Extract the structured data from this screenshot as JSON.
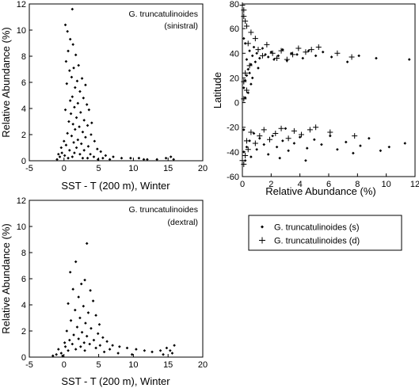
{
  "chart_data": [
    {
      "id": "a",
      "type": "scatter",
      "xlabel": "SST - T (200 m), Winter",
      "ylabel": "Relative Abundance (%)",
      "xlim": [
        -5,
        20
      ],
      "ylim": [
        0,
        12
      ],
      "xticks": [
        "-5",
        "0",
        "5",
        "10",
        "15",
        "20"
      ],
      "yticks": [
        "0",
        "2",
        "4",
        "6",
        "8",
        "10",
        "12"
      ],
      "annotation": [
        "G. truncatulinoides",
        "(sinistral)"
      ],
      "grid": false,
      "series": [
        {
          "marker": "diamond",
          "points": [
            [
              1.2,
              11.6
            ],
            [
              0.2,
              10.4
            ],
            [
              0.5,
              9.9
            ],
            [
              0.9,
              9.3
            ],
            [
              1.3,
              8.9
            ],
            [
              0.6,
              8.4
            ],
            [
              1.7,
              8.1
            ],
            [
              0.3,
              7.6
            ],
            [
              1.4,
              7.1
            ],
            [
              2.1,
              7.3
            ],
            [
              0.8,
              6.9
            ],
            [
              1.1,
              6.4
            ],
            [
              1.9,
              6.1
            ],
            [
              2.6,
              6.3
            ],
            [
              0.4,
              5.9
            ],
            [
              1.6,
              5.6
            ],
            [
              2.3,
              5.3
            ],
            [
              3.1,
              5.8
            ],
            [
              1.2,
              4.9
            ],
            [
              0.9,
              4.6
            ],
            [
              2.0,
              4.4
            ],
            [
              2.8,
              4.8
            ],
            [
              3.3,
              4.3
            ],
            [
              1.5,
              4.1
            ],
            [
              0.2,
              3.9
            ],
            [
              1.0,
              3.6
            ],
            [
              2.4,
              3.7
            ],
            [
              3.6,
              3.9
            ],
            [
              1.8,
              3.3
            ],
            [
              2.9,
              3.1
            ],
            [
              0.7,
              3.0
            ],
            [
              1.3,
              2.8
            ],
            [
              2.2,
              2.6
            ],
            [
              3.4,
              2.7
            ],
            [
              4.0,
              2.9
            ],
            [
              1.6,
              2.4
            ],
            [
              2.7,
              2.2
            ],
            [
              0.5,
              2.1
            ],
            [
              1.1,
              1.9
            ],
            [
              3.1,
              1.8
            ],
            [
              3.9,
              2.0
            ],
            [
              2.0,
              1.6
            ],
            [
              4.4,
              1.5
            ],
            [
              1.4,
              1.4
            ],
            [
              2.5,
              1.3
            ],
            [
              0.3,
              1.2
            ],
            [
              3.5,
              1.1
            ],
            [
              1.8,
              1.0
            ],
            [
              4.8,
              0.9
            ],
            [
              2.9,
              0.8
            ],
            [
              0.8,
              0.8
            ],
            [
              5.3,
              0.7
            ],
            [
              1.5,
              0.6
            ],
            [
              3.8,
              0.5
            ],
            [
              2.3,
              0.5
            ],
            [
              6.0,
              0.4
            ],
            [
              0.1,
              0.4
            ],
            [
              4.3,
              0.3
            ],
            [
              7.1,
              0.3
            ],
            [
              1.2,
              0.3
            ],
            [
              2.7,
              0.2
            ],
            [
              5.6,
              0.2
            ],
            [
              8.3,
              0.2
            ],
            [
              3.4,
              0.2
            ],
            [
              9.6,
              0.2
            ],
            [
              0.6,
              0.2
            ],
            [
              6.6,
              0.1
            ],
            [
              10.8,
              0.2
            ],
            [
              12.0,
              0.1
            ],
            [
              4.9,
              0.1
            ],
            [
              13.4,
              0.1
            ],
            [
              14.7,
              0.2
            ],
            [
              15.4,
              0.3
            ],
            [
              15.8,
              0.1
            ],
            [
              11.5,
              0.1
            ],
            [
              -0.6,
              0.3
            ],
            [
              -1.0,
              0.1
            ],
            [
              -0.3,
              0.6
            ],
            [
              -0.8,
              0.5
            ],
            [
              0.0,
              1.5
            ],
            [
              -0.4,
              1.0
            ]
          ]
        }
      ]
    },
    {
      "id": "b",
      "type": "scatter",
      "xlabel": "Relative Abundance (%)",
      "ylabel": "Latitude",
      "xlim": [
        0,
        12
      ],
      "ylim": [
        -60,
        80
      ],
      "xticks": [
        "0",
        "2",
        "4",
        "6",
        "8",
        "10",
        "12"
      ],
      "yticks": [
        "-60",
        "-40",
        "-20",
        "0",
        "20",
        "40",
        "60",
        "80"
      ],
      "grid": false,
      "series": [
        {
          "name": "G. truncatulinoides (s)",
          "marker": "diamond",
          "points": [
            [
              11.6,
              35
            ],
            [
              9.3,
              36
            ],
            [
              8.1,
              38
            ],
            [
              7.3,
              33
            ],
            [
              6.2,
              37
            ],
            [
              5.6,
              41
            ],
            [
              5.1,
              38
            ],
            [
              4.6,
              42
            ],
            [
              4.2,
              36
            ],
            [
              3.8,
              39
            ],
            [
              3.4,
              40
            ],
            [
              3.1,
              34
            ],
            [
              2.8,
              43
            ],
            [
              2.5,
              38
            ],
            [
              2.2,
              35
            ],
            [
              2.0,
              41
            ],
            [
              1.8,
              37
            ],
            [
              1.6,
              39
            ],
            [
              1.4,
              44
            ],
            [
              1.2,
              36
            ],
            [
              1.0,
              40
            ],
            [
              0.9,
              33
            ],
            [
              0.8,
              45
            ],
            [
              0.7,
              38
            ],
            [
              0.6,
              31
            ],
            [
              0.5,
              42
            ],
            [
              0.4,
              27
            ],
            [
              0.3,
              35
            ],
            [
              0.3,
              22
            ],
            [
              0.2,
              48
            ],
            [
              0.2,
              18
            ],
            [
              0.1,
              52
            ],
            [
              0.1,
              12
            ],
            [
              0.4,
              8
            ],
            [
              0.2,
              4
            ],
            [
              0.5,
              24
            ],
            [
              0.7,
              20
            ],
            [
              1.1,
              28
            ],
            [
              0.6,
              15
            ],
            [
              11.3,
              -33
            ],
            [
              10.2,
              -36
            ],
            [
              9.6,
              -39
            ],
            [
              8.8,
              -29
            ],
            [
              8.2,
              -35
            ],
            [
              7.7,
              -41
            ],
            [
              7.2,
              -32
            ],
            [
              6.6,
              -38
            ],
            [
              6.1,
              -27
            ],
            [
              5.5,
              -34
            ],
            [
              5.0,
              -30
            ],
            [
              4.5,
              -37
            ],
            [
              4.0,
              -28
            ],
            [
              3.6,
              -33
            ],
            [
              3.2,
              -39
            ],
            [
              2.8,
              -31
            ],
            [
              2.4,
              -36
            ],
            [
              2.1,
              -27
            ],
            [
              1.8,
              -42
            ],
            [
              1.5,
              -34
            ],
            [
              1.2,
              -29
            ],
            [
              1.0,
              -38
            ],
            [
              0.8,
              -25
            ],
            [
              0.6,
              -44
            ],
            [
              0.5,
              -31
            ],
            [
              0.3,
              -36
            ],
            [
              0.2,
              -47
            ],
            [
              0.1,
              -22
            ],
            [
              0.1,
              -40
            ],
            [
              2.6,
              -45
            ],
            [
              4.4,
              -47
            ],
            [
              3.0,
              -21
            ]
          ]
        },
        {
          "name": "G. truncatulinoides (d)",
          "marker": "plus",
          "points": [
            [
              7.6,
              37
            ],
            [
              6.6,
              40
            ],
            [
              5.3,
              45
            ],
            [
              4.8,
              43
            ],
            [
              4.4,
              41
            ],
            [
              3.9,
              44
            ],
            [
              3.5,
              39
            ],
            [
              3.1,
              35
            ],
            [
              2.7,
              42
            ],
            [
              2.4,
              36
            ],
            [
              2.1,
              40
            ],
            [
              1.7,
              47
            ],
            [
              1.4,
              38
            ],
            [
              1.1,
              43
            ],
            [
              0.9,
              52
            ],
            [
              0.6,
              57
            ],
            [
              0.4,
              48
            ],
            [
              0.3,
              62
            ],
            [
              0.2,
              66
            ],
            [
              0.1,
              70
            ],
            [
              0.1,
              75
            ],
            [
              0.0,
              79
            ],
            [
              0.5,
              30
            ],
            [
              0.2,
              24
            ],
            [
              0.1,
              17
            ],
            [
              0.3,
              10
            ],
            [
              0.1,
              3
            ],
            [
              7.8,
              -27
            ],
            [
              6.1,
              -24
            ],
            [
              5.1,
              -20
            ],
            [
              4.7,
              -22
            ],
            [
              4.1,
              -26
            ],
            [
              3.6,
              -23
            ],
            [
              3.2,
              -29
            ],
            [
              2.7,
              -21
            ],
            [
              2.3,
              -25
            ],
            [
              1.9,
              -30
            ],
            [
              1.5,
              -22
            ],
            [
              1.2,
              -27
            ],
            [
              0.9,
              -33
            ],
            [
              0.6,
              -24
            ],
            [
              0.4,
              -38
            ],
            [
              0.2,
              -43
            ],
            [
              0.1,
              -50
            ],
            [
              0.0,
              -47
            ],
            [
              0.3,
              -31
            ]
          ]
        }
      ]
    },
    {
      "id": "c",
      "type": "scatter",
      "xlabel": "SST - T (200 m), Winter",
      "ylabel": "Relative Abundance (%)",
      "xlim": [
        -5,
        20
      ],
      "ylim": [
        0,
        12
      ],
      "xticks": [
        "-5",
        "0",
        "5",
        "10",
        "15",
        "20"
      ],
      "yticks": [
        "0",
        "2",
        "4",
        "6",
        "8",
        "10",
        "12"
      ],
      "annotation": [
        "G. truncatulinoides",
        "(dextral)"
      ],
      "grid": false,
      "series": [
        {
          "marker": "diamond",
          "points": [
            [
              3.3,
              8.7
            ],
            [
              1.7,
              7.3
            ],
            [
              0.9,
              6.5
            ],
            [
              3.0,
              5.9
            ],
            [
              2.5,
              5.6
            ],
            [
              1.3,
              5.2
            ],
            [
              3.8,
              5.1
            ],
            [
              2.1,
              4.6
            ],
            [
              4.2,
              4.3
            ],
            [
              0.6,
              4.1
            ],
            [
              2.8,
              3.9
            ],
            [
              1.6,
              3.6
            ],
            [
              3.5,
              3.4
            ],
            [
              4.6,
              3.2
            ],
            [
              2.3,
              3.0
            ],
            [
              1.0,
              2.8
            ],
            [
              3.1,
              2.6
            ],
            [
              5.1,
              2.5
            ],
            [
              1.9,
              2.3
            ],
            [
              3.9,
              2.2
            ],
            [
              0.4,
              2.0
            ],
            [
              2.6,
              1.9
            ],
            [
              4.9,
              1.8
            ],
            [
              1.4,
              1.7
            ],
            [
              3.3,
              1.6
            ],
            [
              5.6,
              1.5
            ],
            [
              2.1,
              1.4
            ],
            [
              0.8,
              1.3
            ],
            [
              4.3,
              1.3
            ],
            [
              6.2,
              1.2
            ],
            [
              2.9,
              1.1
            ],
            [
              1.2,
              1.0
            ],
            [
              3.7,
              1.0
            ],
            [
              7.0,
              0.9
            ],
            [
              5.2,
              0.9
            ],
            [
              0.2,
              0.8
            ],
            [
              2.4,
              0.8
            ],
            [
              8.0,
              0.8
            ],
            [
              4.6,
              0.7
            ],
            [
              9.1,
              0.7
            ],
            [
              1.7,
              0.6
            ],
            [
              6.6,
              0.6
            ],
            [
              3.0,
              0.5
            ],
            [
              10.4,
              0.6
            ],
            [
              11.6,
              0.5
            ],
            [
              0.6,
              0.5
            ],
            [
              5.8,
              0.4
            ],
            [
              12.7,
              0.4
            ],
            [
              13.9,
              0.5
            ],
            [
              7.8,
              0.3
            ],
            [
              14.8,
              0.7
            ],
            [
              15.3,
              0.5
            ],
            [
              15.9,
              0.9
            ],
            [
              15.6,
              0.3
            ],
            [
              14.3,
              0.2
            ],
            [
              9.8,
              0.2
            ],
            [
              -0.4,
              0.3
            ],
            [
              -1.1,
              0.2
            ],
            [
              -0.8,
              0.6
            ],
            [
              0.1,
              1.1
            ],
            [
              -0.2,
              0.1
            ],
            [
              -1.6,
              0.1
            ]
          ]
        }
      ]
    }
  ],
  "legend": {
    "placement": "bottom-right",
    "entries": [
      {
        "marker": "diamond",
        "label": "G. truncatulinoides (s)"
      },
      {
        "marker": "plus",
        "label": "G. truncatulinoides (d)"
      }
    ]
  }
}
